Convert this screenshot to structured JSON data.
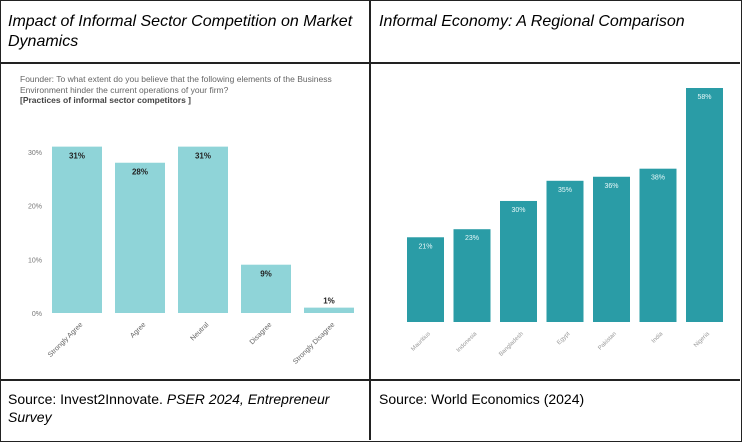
{
  "left_panel": {
    "title": "Impact of Informal Sector Competition on Market Dynamics",
    "question": "Founder: To what extent do you believe that the following elements of the Business Environment hinder the current operations of your firm?",
    "question_bold": "[Practices of informal sector competitors ]",
    "source_prefix": "Source: Invest2Innovate. ",
    "source_italic": "PSER 2024, Entrepreneur Survey"
  },
  "right_panel": {
    "title": "Informal Economy: A Regional Comparison",
    "source": "Source: World Economics (2024)"
  },
  "chart_data": [
    {
      "type": "bar",
      "title": "Impact of Informal Sector Competition on Market Dynamics",
      "categories": [
        "Strongly Agree",
        "Agree",
        "Neutral",
        "Disagree",
        "Strongly Disagree"
      ],
      "values": [
        31,
        28,
        31,
        9,
        1
      ],
      "data_labels": [
        "31%",
        "28%",
        "31%",
        "9%",
        "1%"
      ],
      "y_ticks": [
        "0%",
        "10%",
        "20%",
        "30%"
      ],
      "ylim": [
        0,
        30
      ],
      "color": "#8fd4d8",
      "xlabel": "",
      "ylabel": ""
    },
    {
      "type": "bar",
      "title": "Informal Economy: A Regional Comparison",
      "categories": [
        "Mauritius",
        "Indonesia",
        "Bangladesh",
        "Egypt",
        "Pakistan",
        "India",
        "Nigeria"
      ],
      "values": [
        21,
        23,
        30,
        35,
        36,
        38,
        58
      ],
      "data_labels": [
        "21%",
        "23%",
        "30%",
        "35%",
        "36%",
        "38%",
        "58%"
      ],
      "ylim": [
        0,
        58
      ],
      "color": "#2a9ca6",
      "xlabel": "",
      "ylabel": ""
    }
  ]
}
